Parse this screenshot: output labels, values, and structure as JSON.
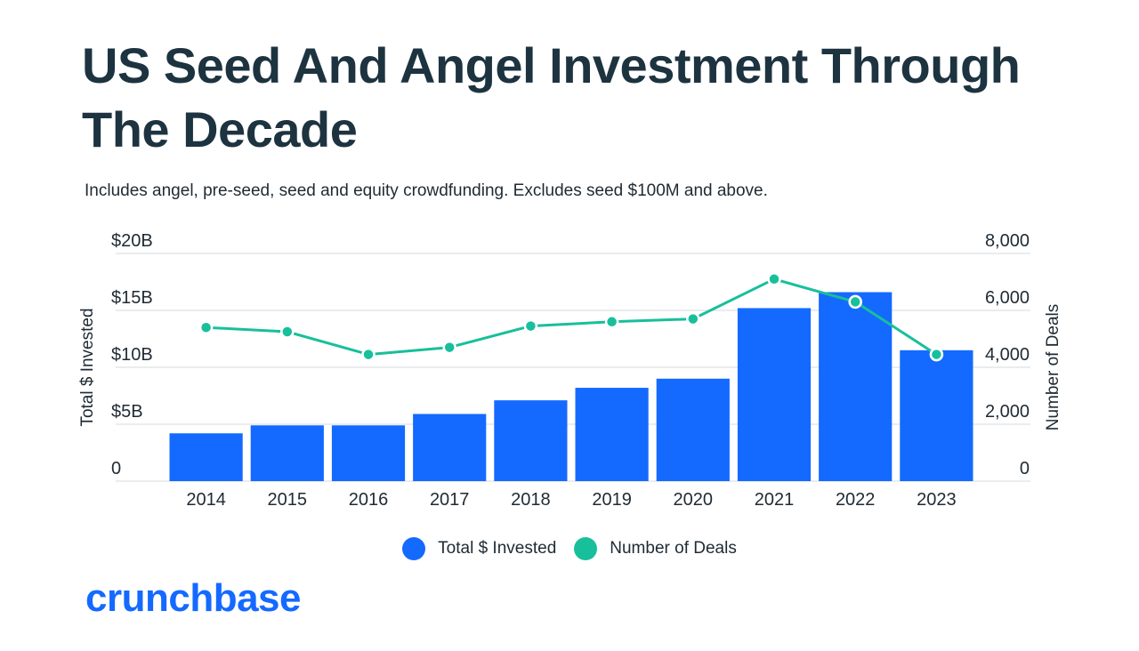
{
  "title": "US Seed And Angel Investment Through The Decade",
  "subtitle": "Includes angel, pre-seed, seed and equity crowdfunding. Excludes seed $100M and above.",
  "brand": "crunchbase",
  "colors": {
    "bar": "#146aff",
    "line": "#18bf9b",
    "title": "#1d3340",
    "grid": "#e3e6e9"
  },
  "legend": [
    {
      "label": "Total $ Invested",
      "color": "#146aff"
    },
    {
      "label": "Number of Deals",
      "color": "#18bf9b"
    }
  ],
  "chart_data": {
    "type": "bar",
    "categories": [
      "2014",
      "2015",
      "2016",
      "2017",
      "2018",
      "2019",
      "2020",
      "2021",
      "2022",
      "2023"
    ],
    "series": [
      {
        "name": "Total $ Invested",
        "type": "bar",
        "axis": "left",
        "values": [
          4.2,
          4.9,
          4.9,
          5.9,
          7.1,
          8.2,
          9.0,
          15.2,
          16.6,
          11.5
        ]
      },
      {
        "name": "Number of Deals",
        "type": "line",
        "axis": "right",
        "values": [
          5400,
          5250,
          4450,
          4700,
          5450,
          5600,
          5700,
          7100,
          6300,
          4450
        ]
      }
    ],
    "ylabel_left": "Total $ Invested",
    "ylabel_right": "Number of Deals",
    "ylim_left": [
      0,
      20
    ],
    "ylim_right": [
      0,
      8000
    ],
    "y_ticks_left": [
      "0",
      "$5B",
      "$10B",
      "$15B",
      "$20B"
    ],
    "y_ticks_right": [
      "0",
      "2,000",
      "4,000",
      "6,000",
      "8,000"
    ],
    "grid": true,
    "legend_position": "bottom"
  }
}
